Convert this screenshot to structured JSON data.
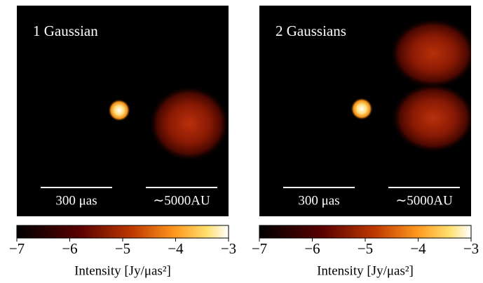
{
  "chart_data": [
    {
      "type": "image",
      "annotation": "1 Gaussian",
      "scalebars": [
        "300 μas",
        "∼5000AU"
      ],
      "colorbar_label": "Intensity [Jy/μas²]",
      "clim": [
        -7,
        -3
      ],
      "cticks": [
        {
          "value": -7,
          "label": "−7"
        },
        {
          "value": -6,
          "label": "−6"
        },
        {
          "value": -5,
          "label": "−5"
        },
        {
          "value": -4,
          "label": "−4"
        },
        {
          "value": -3,
          "label": "−3"
        }
      ]
    },
    {
      "type": "image",
      "annotation": "2 Gaussians",
      "scalebars": [
        "300 μas",
        "∼5000AU"
      ],
      "colorbar_label": "Intensity [Jy/μas²]",
      "clim": [
        -7,
        -3
      ],
      "cticks": [
        {
          "value": -7,
          "label": "−7"
        },
        {
          "value": -6,
          "label": "−6"
        },
        {
          "value": -5,
          "label": "−5"
        },
        {
          "value": -4,
          "label": "−4"
        },
        {
          "value": -3,
          "label": "−3"
        }
      ]
    }
  ]
}
